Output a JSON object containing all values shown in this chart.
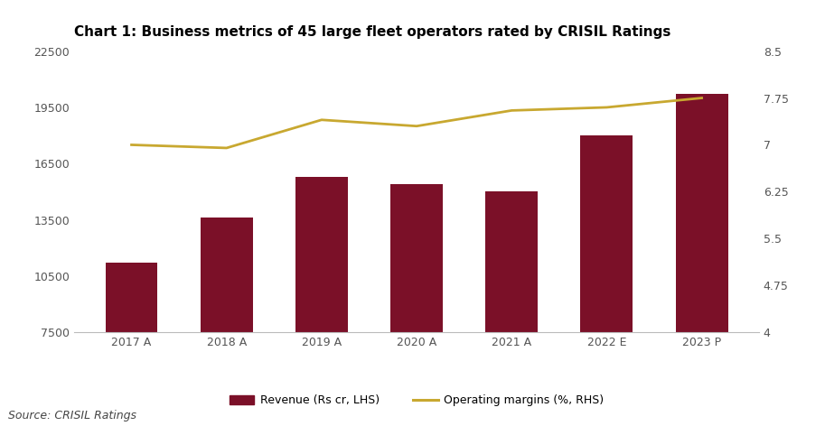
{
  "title": "Chart 1: Business metrics of 45 large fleet operators rated by CRISIL Ratings",
  "categories": [
    "2017 A",
    "2018 A",
    "2019 A",
    "2020 A",
    "2021 A",
    "2022 E",
    "2023 P"
  ],
  "revenue": [
    11200,
    13600,
    15800,
    15400,
    15000,
    18000,
    20200
  ],
  "margins": [
    7.0,
    6.95,
    7.4,
    7.3,
    7.55,
    7.6,
    7.75
  ],
  "bar_color": "#7B1028",
  "line_color": "#C8A830",
  "ylim_left": [
    7500,
    22500
  ],
  "ylim_right": [
    4.0,
    8.5
  ],
  "yticks_left": [
    7500,
    10500,
    13500,
    16500,
    19500,
    22500
  ],
  "yticks_right": [
    4.0,
    4.75,
    5.5,
    6.25,
    7.0,
    7.75,
    8.5
  ],
  "ytick_right_labels": [
    "4",
    "4.75",
    "5.5",
    "6.25",
    "7",
    "7.75",
    "8.5"
  ],
  "legend_bar_label": "Revenue (Rs cr, LHS)",
  "legend_line_label": "Operating margins (%, RHS)",
  "source_text": "Source: CRISIL Ratings",
  "bg_color": "#FFFFFF",
  "title_fontsize": 11,
  "axis_fontsize": 9,
  "source_fontsize": 9
}
